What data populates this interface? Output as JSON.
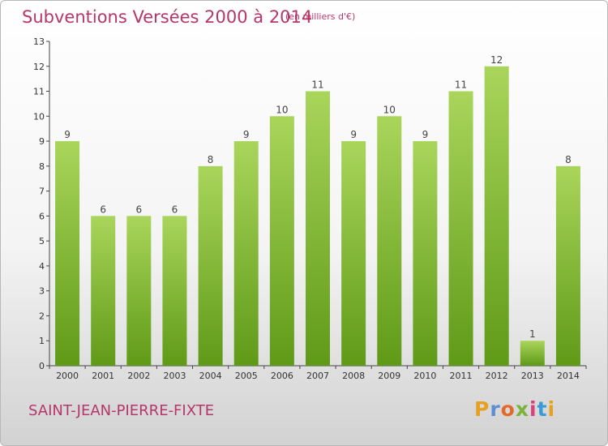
{
  "header": {
    "title": "Subventions Versées 2000 à 2014",
    "unit": "(en milliers d'€)"
  },
  "footer": {
    "commune": "SAINT-JEAN-PIERRE-FIXTE",
    "logo_text": "Proxiti",
    "logo_colors": [
      "#e8a020",
      "#5b8fd1",
      "#e36a2a",
      "#7ab33b",
      "#d8417a",
      "#3b9ad8",
      "#e8a020"
    ]
  },
  "colors": {
    "title": "#b5366a",
    "bar_top": "#a9d55b",
    "bar_bottom": "#5f9a17",
    "axis": "#444444"
  },
  "chart_data": {
    "type": "bar",
    "title": "Subventions Versées 2000 à 2014",
    "subtitle": "(en milliers d'€)",
    "xlabel": "",
    "ylabel": "",
    "categories": [
      "2000",
      "2001",
      "2002",
      "2003",
      "2004",
      "2005",
      "2006",
      "2007",
      "2008",
      "2009",
      "2010",
      "2011",
      "2012",
      "2013",
      "2014"
    ],
    "values": [
      9,
      6,
      6,
      6,
      8,
      9,
      10,
      11,
      9,
      10,
      9,
      11,
      12,
      1,
      8
    ],
    "ylim": [
      0,
      13
    ],
    "yticks": [
      0,
      1,
      2,
      3,
      4,
      5,
      6,
      7,
      8,
      9,
      10,
      11,
      12,
      13
    ],
    "grid": false,
    "data_labels": true
  }
}
